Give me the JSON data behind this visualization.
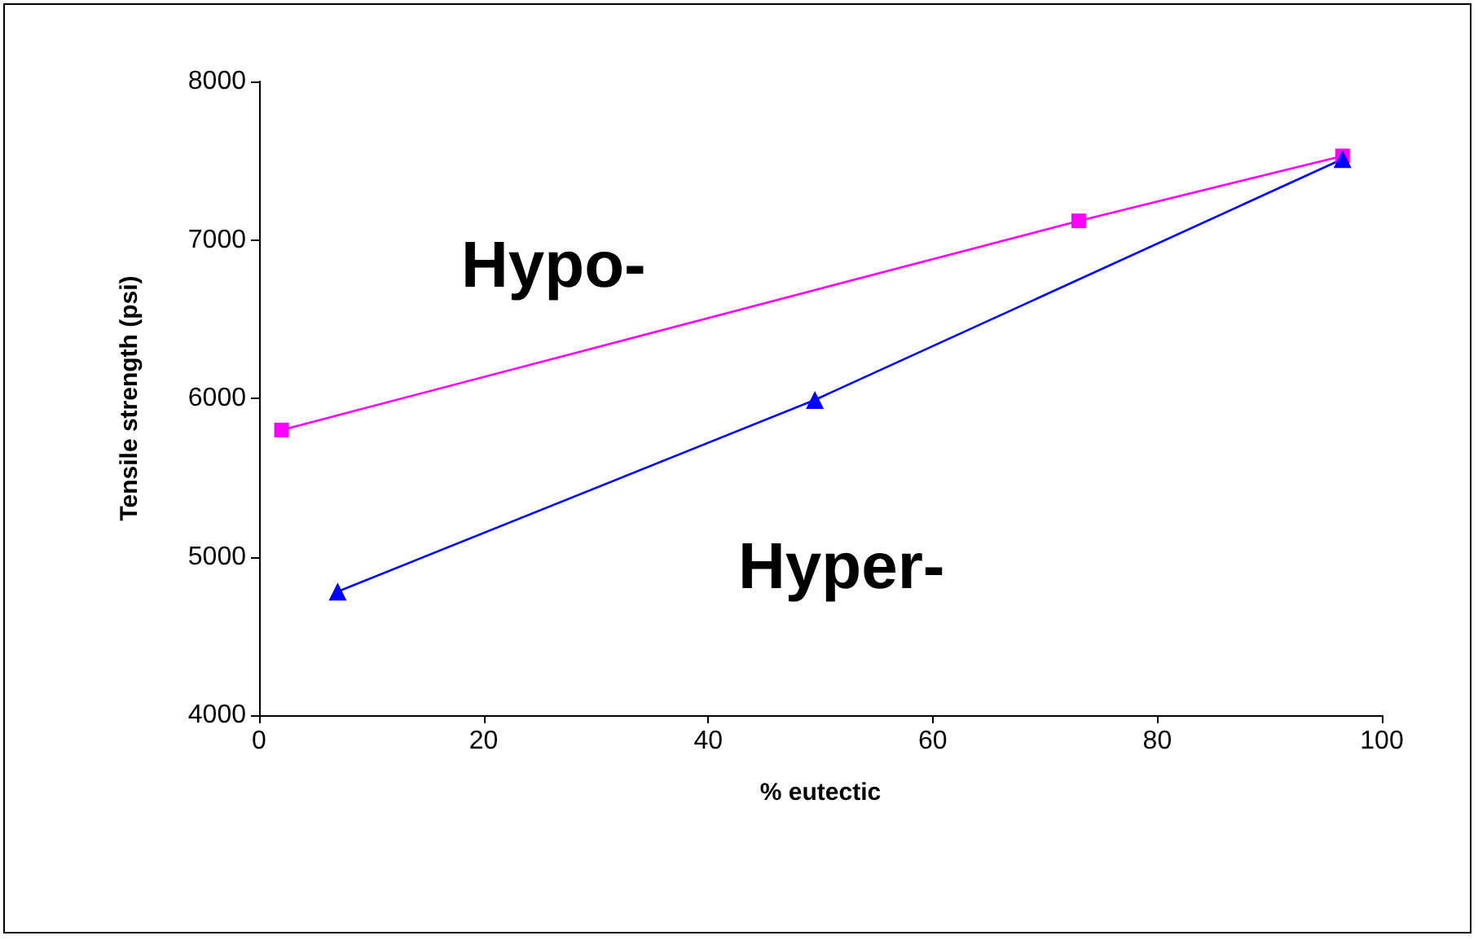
{
  "chart_data": {
    "type": "line",
    "xlabel": "% eutectic",
    "ylabel": "Tensile strength (psi)",
    "xlim": [
      0,
      100
    ],
    "xticks": [
      0,
      20,
      40,
      60,
      80,
      100
    ],
    "ylim": [
      4000,
      8000
    ],
    "yticks": [
      4000,
      5000,
      6000,
      7000,
      8000
    ],
    "grid": false,
    "legend": false,
    "series": [
      {
        "name": "Hypo-",
        "color": "#ff00ff",
        "marker": "square",
        "x": [
          2,
          73,
          96.5
        ],
        "values": [
          5800,
          7120,
          7530
        ]
      },
      {
        "name": "Hyper-",
        "color": "#0000ff",
        "marker": "triangle",
        "x": [
          7,
          49.5,
          96.5
        ],
        "values": [
          4780,
          5990,
          7510
        ]
      }
    ]
  }
}
